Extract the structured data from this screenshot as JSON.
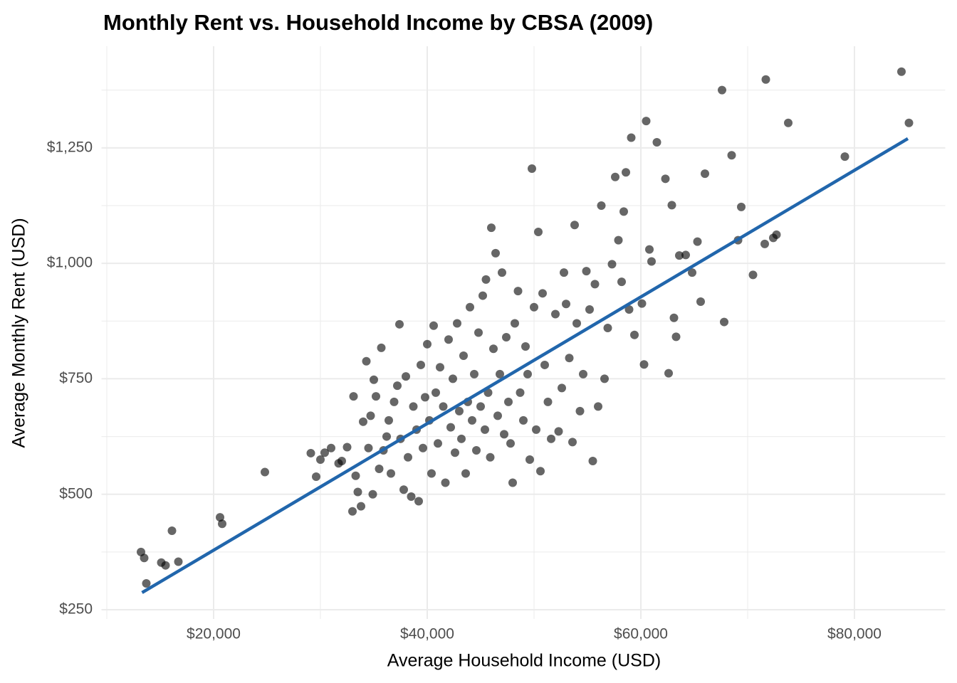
{
  "chart_data": {
    "type": "scatter",
    "title": "Monthly Rent vs. Household Income by CBSA (2009)",
    "x_label": "Average Household Income (USD)",
    "y_label": "Average Monthly Rent (USD)",
    "xlim": [
      9500,
      88500
    ],
    "ylim": [
      230,
      1470
    ],
    "xticks": [
      {
        "value": 20000,
        "label": "$20,000"
      },
      {
        "value": 40000,
        "label": "$40,000"
      },
      {
        "value": 60000,
        "label": "$60,000"
      },
      {
        "value": 80000,
        "label": "$80,000"
      }
    ],
    "yticks": [
      {
        "value": 250,
        "label": "$250"
      },
      {
        "value": 500,
        "label": "$500"
      },
      {
        "value": 750,
        "label": "$750"
      },
      {
        "value": 1000,
        "label": "$1,000"
      },
      {
        "value": 1250,
        "label": "$1,250"
      }
    ],
    "x_minor_grid": [
      10000,
      30000,
      50000,
      70000
    ],
    "y_minor_grid": [
      375,
      625,
      875,
      1125,
      1375
    ],
    "grid": true,
    "color": "#000000",
    "opacity": 0.6,
    "x": [
      13200,
      13500,
      13700,
      15100,
      15500,
      16100,
      16700,
      20600,
      20800,
      24800,
      29100,
      29600,
      30000,
      30400,
      31000,
      31700,
      32000,
      32500,
      33000,
      33100,
      33300,
      33500,
      33800,
      34000,
      34300,
      34500,
      34700,
      34900,
      35000,
      35200,
      35500,
      35700,
      35900,
      36200,
      36400,
      36600,
      36900,
      37200,
      37400,
      37500,
      37800,
      38000,
      38200,
      38500,
      38700,
      39000,
      39200,
      39400,
      39600,
      39800,
      40000,
      40200,
      40400,
      40600,
      40800,
      41000,
      41200,
      41500,
      41700,
      42000,
      42200,
      42400,
      42600,
      42800,
      43000,
      43200,
      43400,
      43600,
      43800,
      44000,
      44200,
      44400,
      44600,
      44800,
      45000,
      45200,
      45400,
      45500,
      45700,
      45900,
      46000,
      46200,
      46400,
      46600,
      46800,
      47000,
      47200,
      47400,
      47600,
      47800,
      48000,
      48200,
      48500,
      48700,
      49000,
      49200,
      49400,
      49600,
      49800,
      50000,
      50200,
      50400,
      50600,
      50800,
      51000,
      51300,
      51600,
      52000,
      52300,
      52600,
      52800,
      53000,
      53300,
      53600,
      53800,
      54000,
      54300,
      54600,
      54900,
      55200,
      55500,
      55700,
      56000,
      56300,
      56600,
      56900,
      57300,
      57600,
      57900,
      58200,
      58400,
      58600,
      58900,
      59100,
      59400,
      60100,
      60300,
      60500,
      60800,
      61000,
      61500,
      62300,
      62600,
      62900,
      63100,
      63300,
      63600,
      64200,
      64800,
      65300,
      65600,
      66000,
      67600,
      67800,
      68500,
      69100,
      69400,
      70500,
      71600,
      71700,
      72400,
      72700,
      73800,
      79100,
      84400,
      85100
    ],
    "values": [
      375,
      362,
      307,
      352,
      346,
      421,
      354,
      450,
      436,
      548,
      589,
      538,
      575,
      590,
      600,
      567,
      572,
      602,
      463,
      712,
      540,
      505,
      474,
      657,
      788,
      600,
      670,
      500,
      748,
      712,
      555,
      817,
      595,
      625,
      660,
      545,
      700,
      735,
      868,
      620,
      510,
      755,
      580,
      495,
      690,
      640,
      485,
      780,
      600,
      710,
      825,
      660,
      545,
      865,
      720,
      610,
      775,
      690,
      525,
      835,
      645,
      750,
      590,
      870,
      680,
      620,
      800,
      545,
      700,
      905,
      660,
      760,
      595,
      850,
      690,
      930,
      640,
      965,
      720,
      580,
      1077,
      815,
      1022,
      670,
      760,
      980,
      630,
      840,
      700,
      610,
      525,
      870,
      940,
      720,
      660,
      820,
      760,
      575,
      1205,
      905,
      640,
      1068,
      550,
      935,
      780,
      700,
      620,
      890,
      636,
      730,
      980,
      912,
      795,
      613,
      1083,
      870,
      680,
      760,
      983,
      900,
      572,
      955,
      690,
      1125,
      750,
      860,
      998,
      1187,
      1050,
      960,
      1112,
      1197,
      900,
      1272,
      845,
      913,
      781,
      1308,
      1030,
      1004,
      1262,
      1183,
      762,
      1126,
      882,
      841,
      1017,
      1018,
      980,
      1047,
      917,
      1194,
      1375,
      873,
      1234,
      1050,
      1122,
      975,
      1042,
      1398,
      1055,
      1062,
      1304,
      1231,
      1415,
      1304
    ],
    "fit": {
      "x": [
        13300,
        85000
      ],
      "values": [
        287,
        1270
      ],
      "color": "#2166ac"
    }
  }
}
